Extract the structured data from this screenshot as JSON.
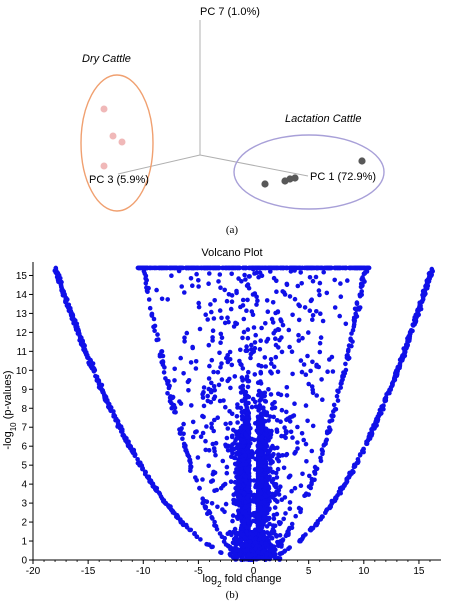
{
  "colors": {
    "dry_ellipse": "#f0a070",
    "dry_points": "#f0b8b8",
    "lact_ellipse": "#a8a0d8",
    "lact_points": "#585858",
    "volcano_points": "#1010e8",
    "axis": "#000000",
    "pca_axes": "#b0b0b0"
  },
  "panel_a": {
    "caption": "(a)",
    "axis_pc7": "PC 7 (1.0%)",
    "axis_pc3": "PC 3 (5.9%)",
    "axis_pc1": "PC 1 (72.9%)",
    "group_dry": "Dry Cattle",
    "group_lactation": "Lactation Cattle"
  },
  "panel_b": {
    "caption": "(b)",
    "xlabel_base": "log",
    "xlabel_sub": "2",
    "xlabel_rest": " fold change",
    "ylabel_pre": "-log",
    "ylabel_sub": "10",
    "ylabel_rest": " (p-values)"
  },
  "chart_data": [
    {
      "type": "scatter",
      "title": "",
      "axes": [
        "PC 1 (72.9%)",
        "PC 3 (5.9%)",
        "PC 7 (1.0%)"
      ],
      "series": [
        {
          "name": "Dry Cattle",
          "points": 4
        },
        {
          "name": "Lactation Cattle",
          "points": 5
        }
      ]
    },
    {
      "type": "scatter",
      "title": "Volcano Plot",
      "xlabel": "log2 fold change",
      "ylabel": "-log10 (p-values)",
      "xlim": [
        -20,
        17
      ],
      "ylim": [
        0,
        15.5
      ],
      "xticks": [
        -20,
        -15,
        -10,
        -5,
        0,
        5,
        10,
        15
      ],
      "yticks": [
        0,
        1,
        2,
        3,
        4,
        5,
        6,
        7,
        8,
        9,
        10,
        11,
        12,
        13,
        14,
        15
      ],
      "grid": false,
      "point_cap_y": 15.4,
      "outer_envelope": {
        "left_x_at_cap": -18,
        "right_x_at_cap": 16.2
      },
      "inner_arm": {
        "left_x_at_cap": -10,
        "right_x_at_cap": 10.2
      },
      "dense_core_x": [
        -5,
        5
      ]
    }
  ]
}
